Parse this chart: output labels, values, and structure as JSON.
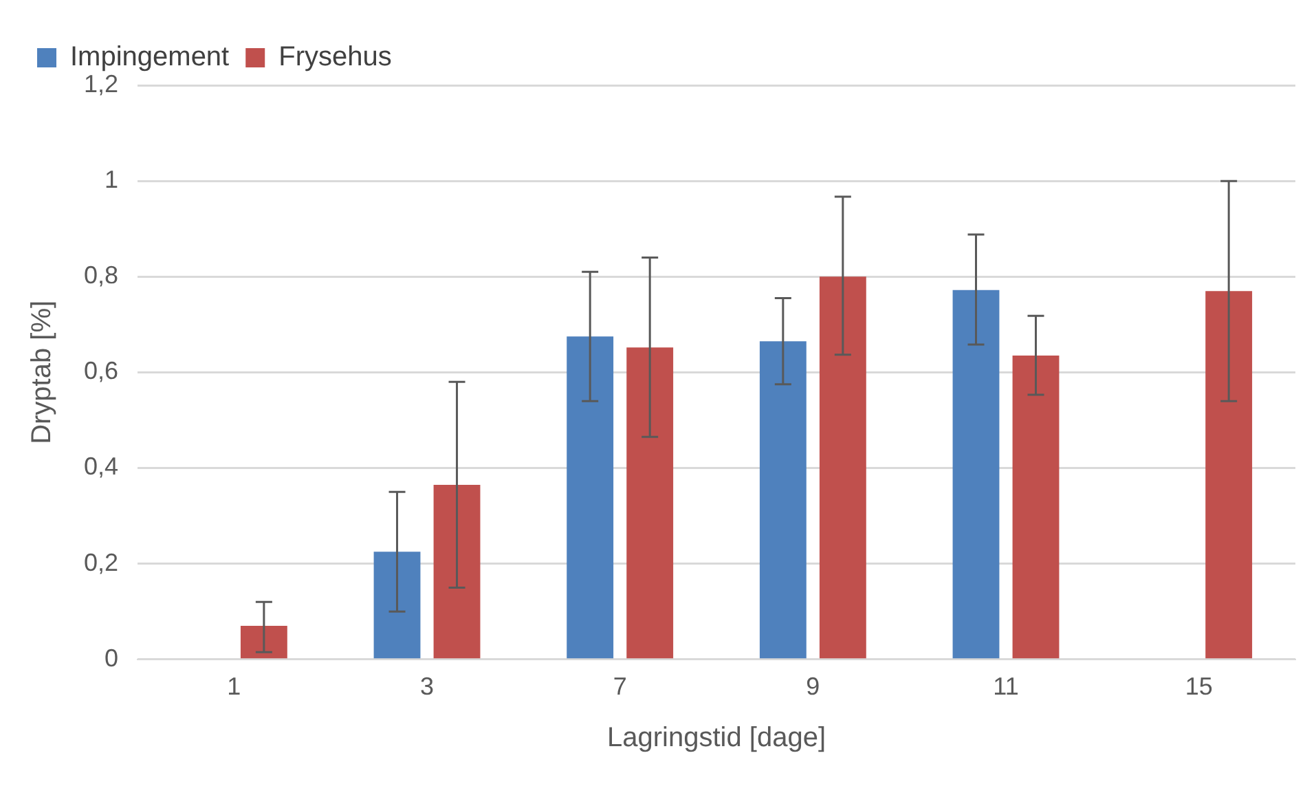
{
  "chart_data": {
    "type": "bar",
    "xlabel": "Lagringstid [dage]",
    "ylabel": "Dryptab [%]",
    "categories": [
      "1",
      "3",
      "7",
      "9",
      "11",
      "15"
    ],
    "series": [
      {
        "name": "Impingement",
        "color": "#4f81bd",
        "values": [
          0,
          0.225,
          0.675,
          0.665,
          0.772,
          null
        ],
        "errors": [
          null,
          [
            0.1,
            0.35
          ],
          [
            0.54,
            0.81
          ],
          [
            0.575,
            0.755
          ],
          [
            0.658,
            0.888
          ],
          null
        ]
      },
      {
        "name": "Frysehus",
        "color": "#c0504d",
        "values": [
          0.07,
          0.365,
          0.652,
          0.8,
          0.635,
          0.77
        ],
        "errors": [
          [
            0.015,
            0.12
          ],
          [
            0.15,
            0.58
          ],
          [
            0.465,
            0.84
          ],
          [
            0.637,
            0.967
          ],
          [
            0.553,
            0.718
          ],
          [
            0.54,
            1.0
          ]
        ]
      }
    ],
    "ylim": [
      0,
      1.2
    ],
    "yticks": [
      0,
      {
        "value": 0.2,
        "label": "0,2"
      },
      {
        "value": 0.4,
        "label": "0,4"
      },
      {
        "value": 0.6,
        "label": "0,6"
      },
      {
        "value": 0.8,
        "label": "0,8"
      },
      1,
      {
        "value": 1.2,
        "label": "1,2"
      }
    ],
    "grid": "y",
    "legend": "top left"
  }
}
